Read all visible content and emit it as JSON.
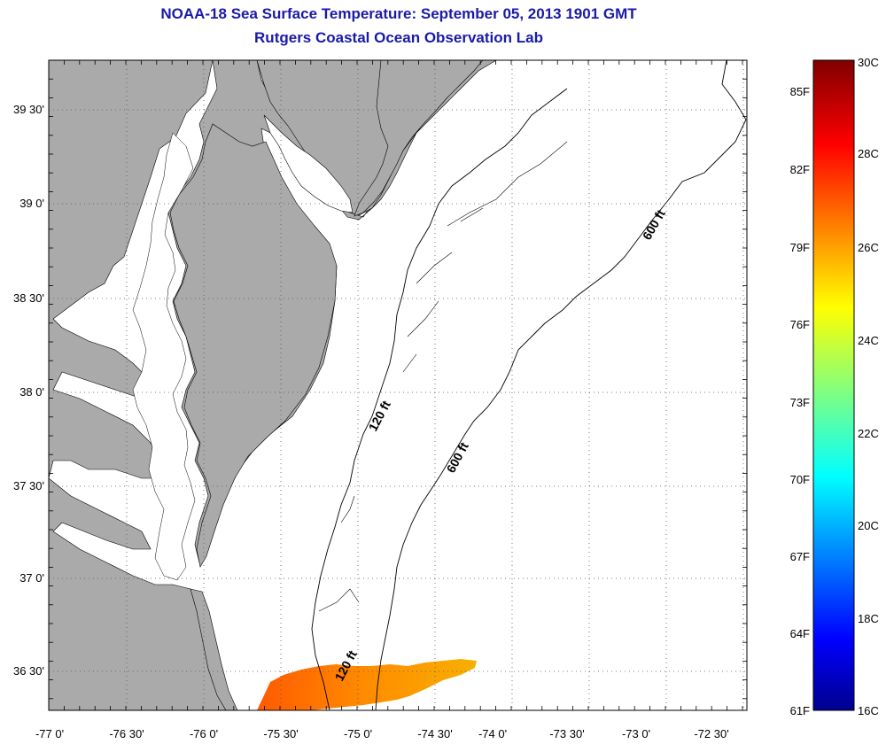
{
  "header": {
    "title": "NOAA-18 Sea Surface Temperature:  September 05, 2013 1901 GMT",
    "subtitle": "Rutgers Coastal Ocean Observation Lab"
  },
  "map": {
    "lon_range": [
      -77.0,
      -72.33
    ],
    "lat_range": [
      36.33,
      39.78
    ],
    "lon_ticks": [
      "-77 0'",
      "-76 30'",
      "-76 0'",
      "-75 30'",
      "-75 0'",
      "-74 30'",
      "-74 0'",
      "-73 30'",
      "-73 0'",
      "-72 30'"
    ],
    "lat_ticks": [
      "39 30'",
      "39 0'",
      "38 30'",
      "38 0'",
      "37 30'",
      "37 0'",
      "36 30'"
    ],
    "grid": "dotted",
    "land_color": "#aaaaaa",
    "isobath_labels": [
      {
        "text": "120 ft",
        "lon": -74.93,
        "lat": 37.92
      },
      {
        "text": "600 ft",
        "lon": -74.48,
        "lat": 37.52
      },
      {
        "text": "600 ft",
        "lon": -72.93,
        "lat": 38.92
      },
      {
        "text": "120 ft",
        "lon": -75.05,
        "lat": 36.56
      }
    ]
  },
  "colorbar": {
    "celsius": [
      "30C",
      "28C",
      "26C",
      "24C",
      "22C",
      "20C",
      "18C",
      "16C"
    ],
    "fahrenheit": [
      "85F",
      "82F",
      "79F",
      "76F",
      "73F",
      "70F",
      "67F",
      "64F",
      "61F"
    ],
    "range_c": [
      16,
      30
    ]
  },
  "sst_patch": {
    "color_range": [
      "#ff6a00",
      "#f8a800"
    ],
    "value_c_range": [
      26,
      28
    ]
  }
}
